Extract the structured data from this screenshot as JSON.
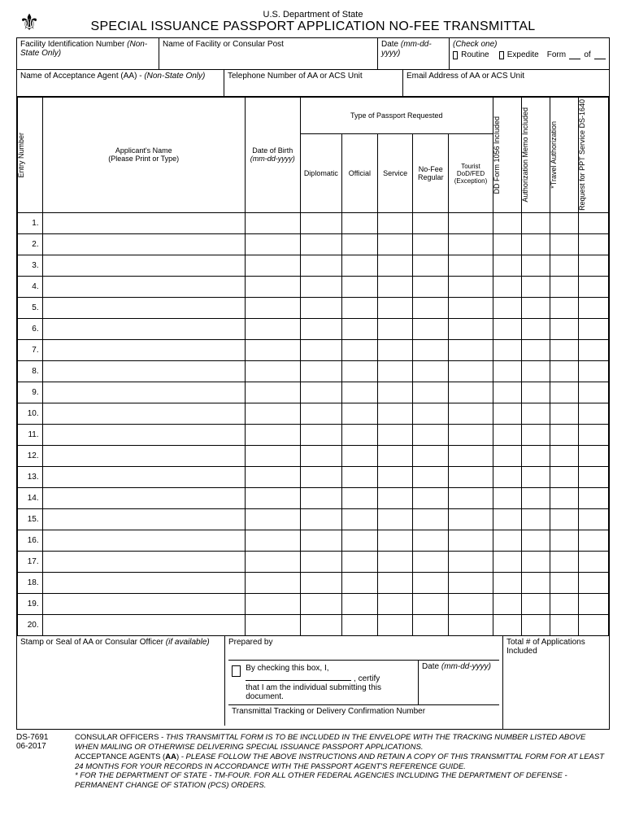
{
  "header": {
    "department": "U.S. Department of State",
    "title": "SPECIAL ISSUANCE PASSPORT APPLICATION NO-FEE TRANSMITTAL"
  },
  "row1": {
    "fin_label": "Facility Identification Number",
    "fin_note": "(Non-State Only)",
    "facility_label": "Name of Facility or Consular Post",
    "date_label": "Date",
    "date_format": "(mm-dd-yyyy)",
    "check_label": "(Check one)",
    "routine": "Routine",
    "expedite": "Expedite",
    "form": "Form",
    "of": "of"
  },
  "row2": {
    "aa_name_label": "Name of Acceptance Agent (AA) -",
    "aa_name_note": "(Non-State Only)",
    "phone_label": "Telephone Number of AA or ACS Unit",
    "email_label": "Email Address of AA or ACS Unit"
  },
  "table_headers": {
    "entry": "Entry\nNumber",
    "applicant_name": "Applicant's Name",
    "applicant_note": "(Please Print or Type)",
    "dob": "Date of Birth",
    "dob_format": "(mm-dd-yyyy)",
    "type_group": "Type of Passport Requested",
    "diplomatic": "Diplomatic",
    "official": "Official",
    "service": "Service",
    "nofee": "No-Fee\nRegular",
    "tourist": "Tourist\nDoD/FED\n(Exception)",
    "dd_form": "DD Form\n1056\nIncluded",
    "auth_memo": "Authorization\nMemo\nIncluded",
    "travel_auth": "*Travel\nAuthorization",
    "request": "Request for\nPPT Service\nDS-1640"
  },
  "row_count": 20,
  "bottom": {
    "stamp": "Stamp or Seal of AA or Consular Officer",
    "stamp_note": "(if available)",
    "prepared": "Prepared by",
    "total": "Total # of Applications Included",
    "certify_text": "By checking this box, I,",
    "certify_end": ", certify",
    "certify_line2": "that I am the individual submitting this document.",
    "certify_date": "Date",
    "certify_date_format": "(mm-dd-yyyy)",
    "tracking": "Transmittal Tracking or Delivery Confirmation Number"
  },
  "footer": {
    "form_id": "DS-7691",
    "form_date": "06-2017",
    "consular_label": "CONSULAR OFFICERS -",
    "consular_text": "THIS TRANSMITTAL FORM IS TO BE INCLUDED IN THE ENVELOPE WITH THE TRACKING NUMBER LISTED ABOVE WHEN MAILING OR OTHERWISE DELIVERING SPECIAL ISSUANCE PASSPORT APPLICATIONS.",
    "aa_label": "ACCEPTANCE AGENTS (AA)",
    "aa_text": "- PLEASE FOLLOW THE ABOVE INSTRUCTIONS AND RETAIN A COPY OF THIS TRANSMITTAL FORM FOR AT LEAST 24 MONTHS FOR YOUR RECORDS IN ACCORDANCE WITH THE PASSPORT AGENT'S REFERENCE GUIDE.",
    "star_text": "* FOR THE DEPARTMENT OF STATE - TM-FOUR.  FOR ALL OTHER FEDERAL AGENCIES INCLUDING THE DEPARTMENT OF DEFENSE - PERMANENT CHANGE OF STATION (PCS) ORDERS."
  }
}
